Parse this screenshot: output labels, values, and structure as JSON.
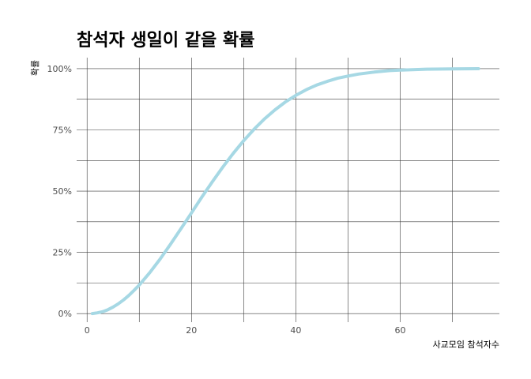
{
  "chart_data": {
    "type": "line",
    "title": "참석자 생일이 같을 확률",
    "xlabel": "사교모임 참석자수",
    "ylabel": "확률",
    "xlim": [
      -2,
      79
    ],
    "ylim": [
      -0.035,
      1.045
    ],
    "x_ticks": [
      0,
      20,
      40,
      60
    ],
    "x_tick_labels": [
      "0",
      "20",
      "40",
      "60"
    ],
    "y_ticks": [
      0,
      0.25,
      0.5,
      0.75,
      1.0
    ],
    "y_tick_labels": [
      "0%",
      "25%",
      "50%",
      "75%",
      "100%"
    ],
    "x_minor_ticks": [
      10,
      30,
      50,
      70
    ],
    "y_minor_ticks": [
      0.125,
      0.375,
      0.625,
      0.875
    ],
    "grid": true,
    "series": [
      {
        "color": "#a6d8e4",
        "x": [
          1,
          2,
          3,
          4,
          5,
          6,
          7,
          8,
          9,
          10,
          12,
          14,
          16,
          18,
          20,
          22,
          23,
          24,
          26,
          28,
          30,
          32,
          34,
          36,
          38,
          40,
          42,
          44,
          46,
          48,
          50,
          52,
          55,
          58,
          60,
          65,
          70,
          75
        ],
        "y": [
          0.0,
          0.003,
          0.008,
          0.016,
          0.027,
          0.04,
          0.056,
          0.074,
          0.095,
          0.117,
          0.167,
          0.223,
          0.284,
          0.347,
          0.411,
          0.476,
          0.507,
          0.538,
          0.598,
          0.654,
          0.706,
          0.753,
          0.795,
          0.832,
          0.864,
          0.891,
          0.914,
          0.933,
          0.948,
          0.961,
          0.97,
          0.978,
          0.986,
          0.992,
          0.994,
          0.998,
          0.999,
          1.0
        ]
      }
    ]
  }
}
